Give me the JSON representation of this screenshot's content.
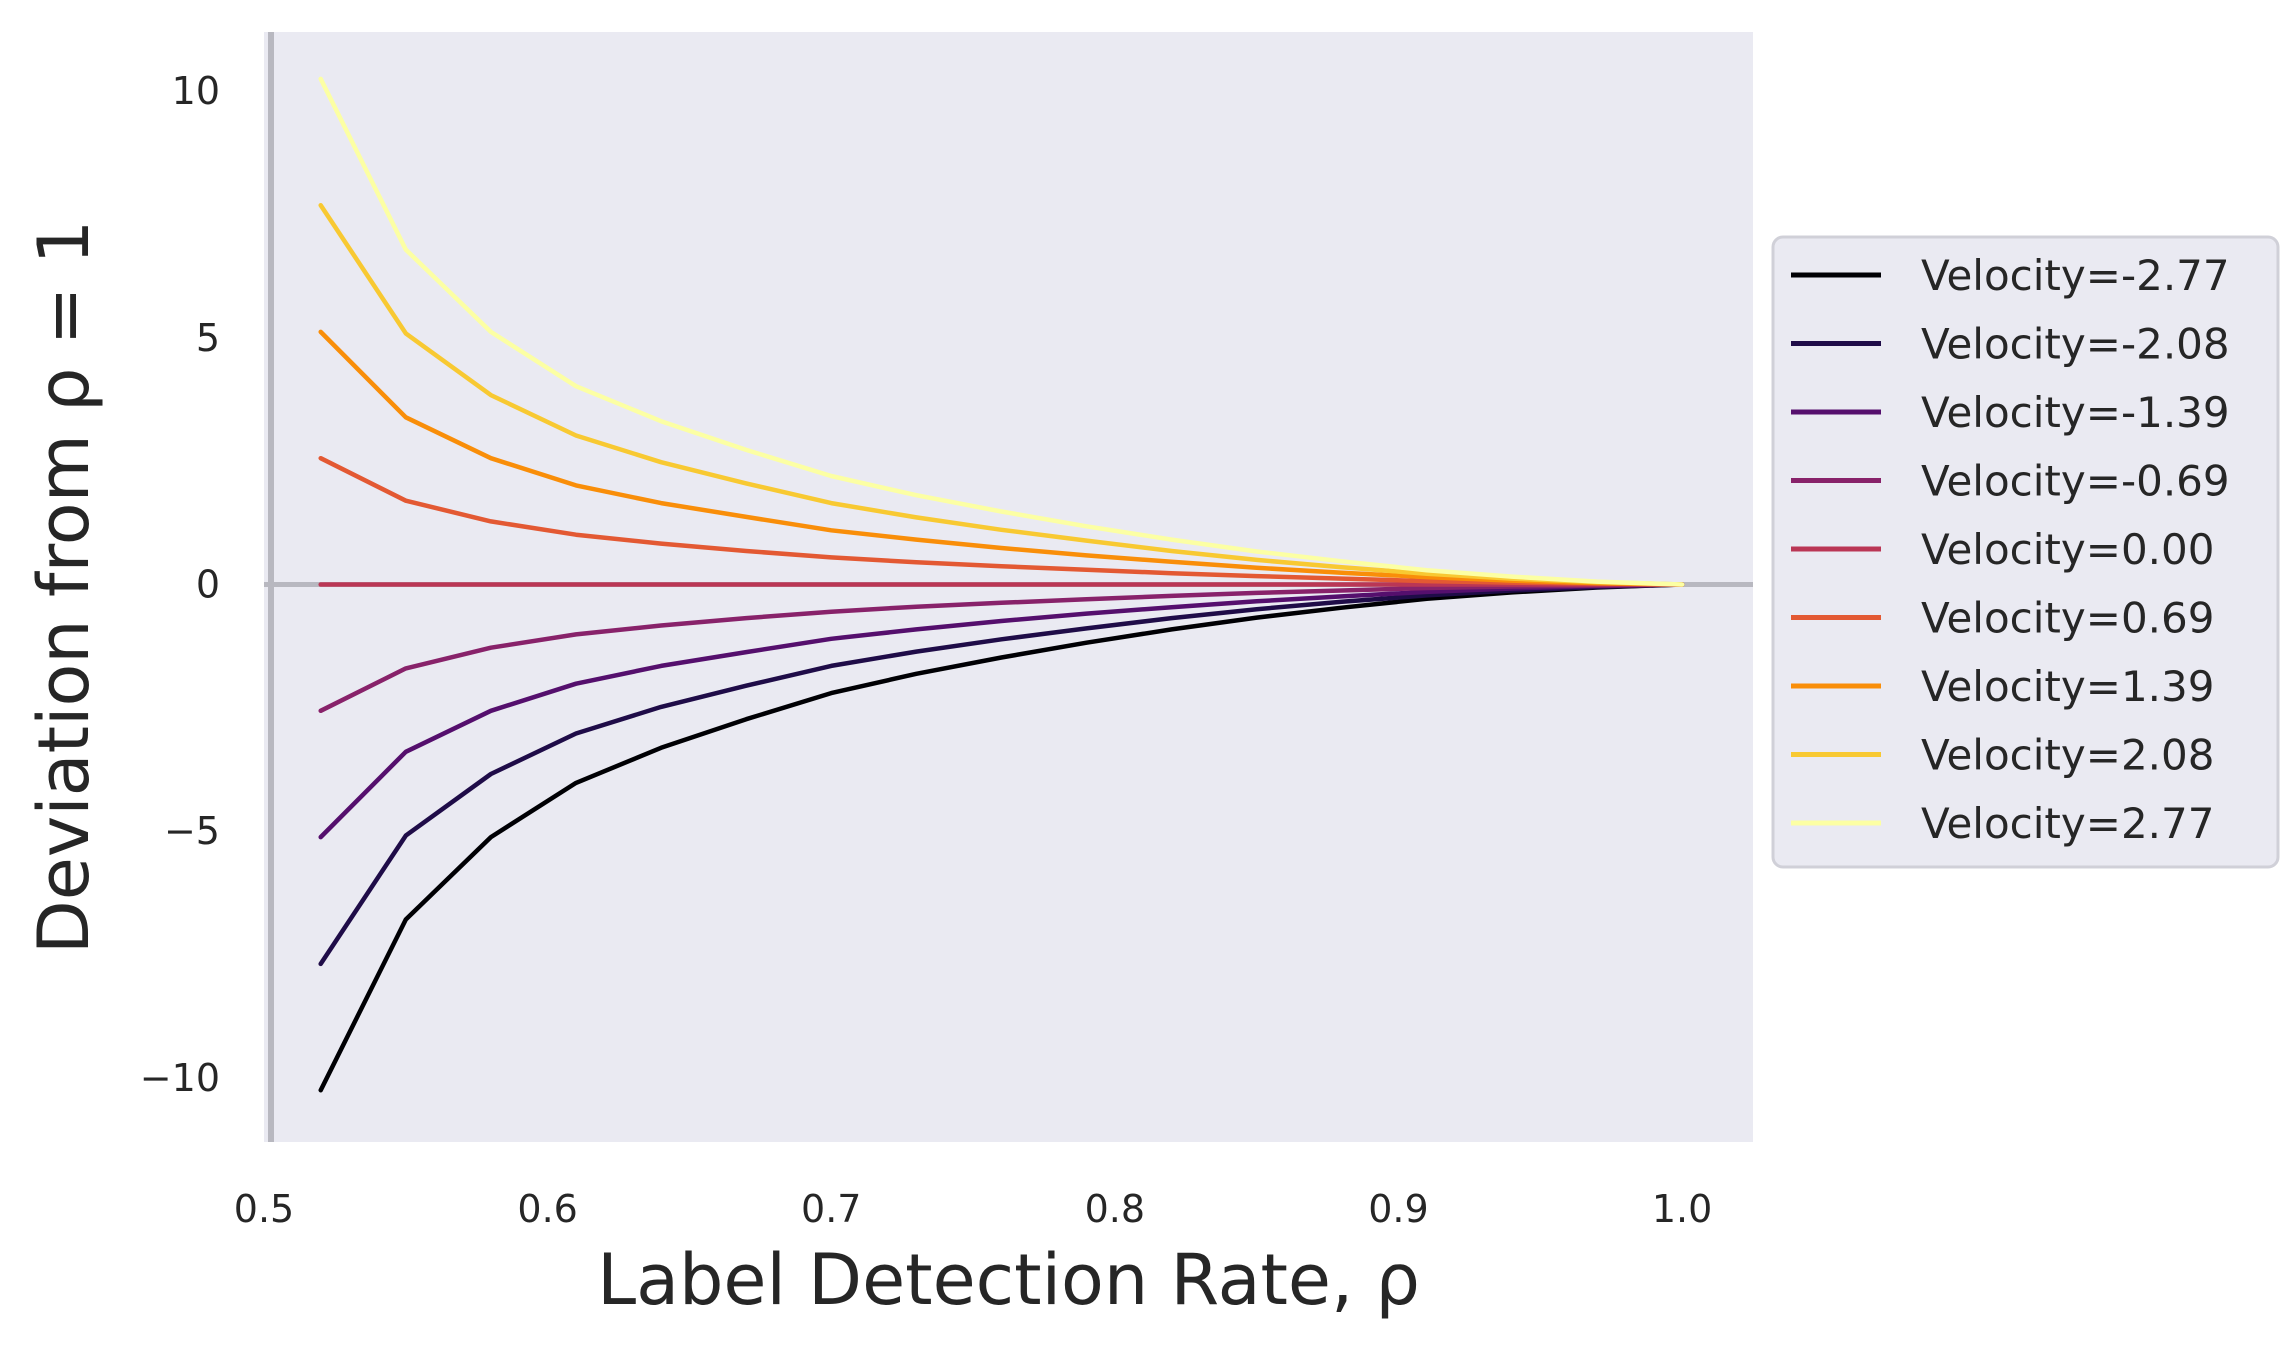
{
  "chart_data": {
    "type": "line",
    "title": "",
    "xlabel": "Label Detection Rate, ρ",
    "ylabel": "Deviation from ρ = 1",
    "xlim": [
      0.5,
      1.025
    ],
    "ylim": [
      -11.3,
      11.2
    ],
    "xticks": [
      0.5,
      0.6,
      0.7,
      0.8,
      0.9,
      1.0
    ],
    "xtick_labels": [
      "0.5",
      "0.6",
      "0.7",
      "0.8",
      "0.9",
      "1.0"
    ],
    "yticks": [
      -10,
      -5,
      0,
      5,
      10
    ],
    "ytick_labels": [
      "−10",
      "−5",
      "0",
      "5",
      "10"
    ],
    "grid": false,
    "background": "#eaeaf2",
    "reference_lines": {
      "y": 0,
      "x": 0.5,
      "color": "#b8b8c0"
    },
    "legend_position": "outside right",
    "x": [
      0.52,
      0.55,
      0.58,
      0.61,
      0.64,
      0.67,
      0.7,
      0.73,
      0.76,
      0.79,
      0.82,
      0.85,
      0.88,
      0.91,
      0.94,
      0.97,
      1.0
    ],
    "series": [
      {
        "name": "Velocity=-2.77",
        "color": "#000004",
        "values": [
          -10.25,
          -6.79,
          -5.12,
          -4.02,
          -3.31,
          -2.73,
          -2.2,
          -1.81,
          -1.48,
          -1.18,
          -0.91,
          -0.67,
          -0.47,
          -0.29,
          -0.16,
          -0.06,
          0.0
        ]
      },
      {
        "name": "Velocity=-2.08",
        "color": "#1f0c48",
        "values": [
          -7.69,
          -5.09,
          -3.84,
          -3.02,
          -2.48,
          -2.05,
          -1.65,
          -1.36,
          -1.11,
          -0.89,
          -0.68,
          -0.5,
          -0.35,
          -0.22,
          -0.12,
          -0.05,
          0.0
        ]
      },
      {
        "name": "Velocity=-1.39",
        "color": "#550f6d",
        "values": [
          -5.12,
          -3.39,
          -2.56,
          -2.01,
          -1.65,
          -1.37,
          -1.1,
          -0.91,
          -0.74,
          -0.59,
          -0.46,
          -0.34,
          -0.24,
          -0.15,
          -0.08,
          -0.03,
          0.0
        ]
      },
      {
        "name": "Velocity=-0.69",
        "color": "#88226a",
        "values": [
          -2.56,
          -1.7,
          -1.28,
          -1.01,
          -0.83,
          -0.68,
          -0.55,
          -0.45,
          -0.37,
          -0.3,
          -0.23,
          -0.17,
          -0.12,
          -0.07,
          -0.04,
          -0.02,
          0.0
        ]
      },
      {
        "name": "Velocity=0.00",
        "color": "#ba3655",
        "values": [
          0,
          0,
          0,
          0,
          0,
          0,
          0,
          0,
          0,
          0,
          0,
          0,
          0,
          0,
          0,
          0,
          0
        ]
      },
      {
        "name": "Velocity=0.69",
        "color": "#e35933",
        "values": [
          2.56,
          1.7,
          1.28,
          1.01,
          0.83,
          0.68,
          0.55,
          0.45,
          0.37,
          0.3,
          0.23,
          0.17,
          0.12,
          0.07,
          0.04,
          0.02,
          0.0
        ]
      },
      {
        "name": "Velocity=1.39",
        "color": "#f98e09",
        "values": [
          5.12,
          3.39,
          2.56,
          2.01,
          1.65,
          1.37,
          1.1,
          0.91,
          0.74,
          0.59,
          0.46,
          0.34,
          0.24,
          0.15,
          0.08,
          0.03,
          0.0
        ]
      },
      {
        "name": "Velocity=2.08",
        "color": "#f8c932",
        "values": [
          7.69,
          5.09,
          3.84,
          3.02,
          2.48,
          2.05,
          1.65,
          1.36,
          1.11,
          0.89,
          0.68,
          0.5,
          0.35,
          0.22,
          0.12,
          0.05,
          0.0
        ]
      },
      {
        "name": "Velocity=2.77",
        "color": "#fcffa4",
        "values": [
          10.25,
          6.79,
          5.12,
          4.02,
          3.31,
          2.73,
          2.2,
          1.81,
          1.48,
          1.18,
          0.91,
          0.67,
          0.47,
          0.29,
          0.16,
          0.06,
          0.0
        ]
      }
    ]
  }
}
